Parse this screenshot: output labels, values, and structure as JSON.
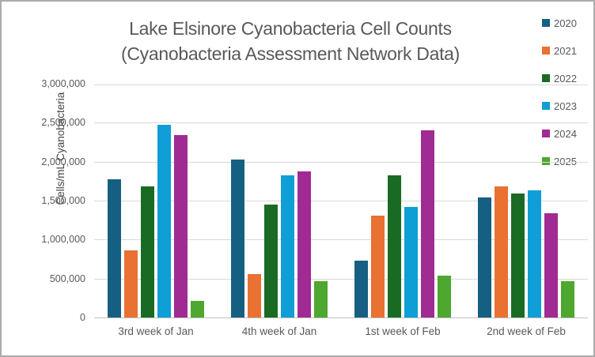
{
  "window": {
    "background": "#ffffff",
    "border_color": "#ababab"
  },
  "chart_data": {
    "type": "bar",
    "title_line1": "Lake Elsinore Cyanobacteria Cell Counts",
    "title_line2": "(Cyanobacteria Assessment Network Data)",
    "ylabel": "Cells/mL Cyanobacteria",
    "xlabel": "",
    "categories": [
      "3rd week of Jan",
      "4th week of Jan",
      "1st week of Feb",
      "2nd week of Feb"
    ],
    "series": [
      {
        "name": "2020",
        "color": "#156082",
        "values": [
          1770000,
          2030000,
          730000,
          1540000
        ]
      },
      {
        "name": "2021",
        "color": "#E97132",
        "values": [
          860000,
          560000,
          1310000,
          1680000
        ]
      },
      {
        "name": "2022",
        "color": "#196B24",
        "values": [
          1680000,
          1450000,
          1820000,
          1590000
        ]
      },
      {
        "name": "2023",
        "color": "#0F9ED5",
        "values": [
          2470000,
          1820000,
          1420000,
          1630000
        ]
      },
      {
        "name": "2024",
        "color": "#A02B93",
        "values": [
          2340000,
          1870000,
          2400000,
          1340000
        ]
      },
      {
        "name": "2025",
        "color": "#4EA72E",
        "values": [
          215000,
          470000,
          540000,
          470000
        ]
      }
    ],
    "ylim": [
      0,
      3000000
    ],
    "y_ticks": [
      {
        "value": 0,
        "label": "0"
      },
      {
        "value": 500000,
        "label": "500,000"
      },
      {
        "value": 1000000,
        "label": "1,000,000"
      },
      {
        "value": 1500000,
        "label": "1,500,000"
      },
      {
        "value": 2000000,
        "label": "2,000,000"
      },
      {
        "value": 2500000,
        "label": "2,500,000"
      },
      {
        "value": 3000000,
        "label": "3,000,000"
      }
    ],
    "grid": "horizontal",
    "legend_position": "right"
  }
}
